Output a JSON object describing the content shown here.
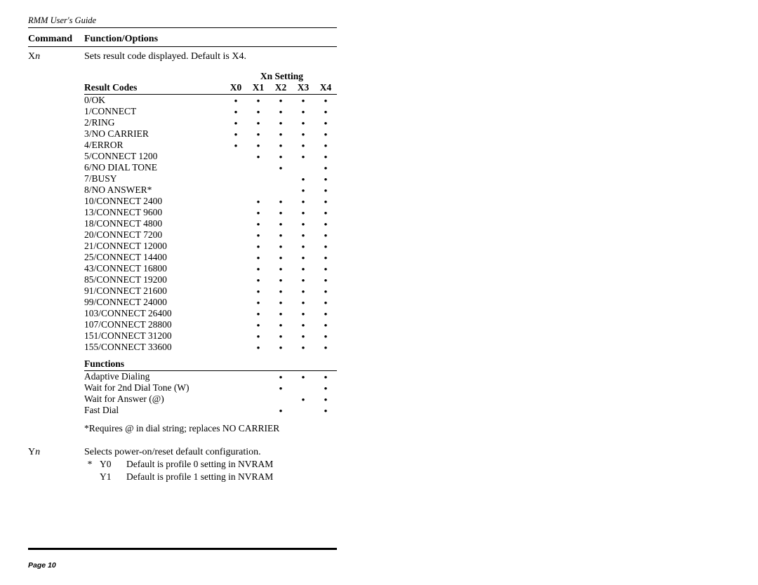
{
  "running_head": "RMM User's Guide",
  "page_label": "Page 10",
  "columns": {
    "command": "Command",
    "function": "Function/Options"
  },
  "xn": {
    "cmd_letter": "X",
    "cmd_var": "n",
    "desc": "Sets result code displayed.  Default is X4.",
    "setting_head": "Xn Setting",
    "setting_cols": [
      "X0",
      "X1",
      "X2",
      "X3",
      "X4"
    ],
    "result_codes_head": "Result Codes",
    "result_codes": [
      {
        "label": "0/OK",
        "dots": [
          1,
          1,
          1,
          1,
          1
        ]
      },
      {
        "label": "1/CONNECT",
        "dots": [
          1,
          1,
          1,
          1,
          1
        ]
      },
      {
        "label": "2/RING",
        "dots": [
          1,
          1,
          1,
          1,
          1
        ]
      },
      {
        "label": "3/NO CARRIER",
        "dots": [
          1,
          1,
          1,
          1,
          1
        ]
      },
      {
        "label": "4/ERROR",
        "dots": [
          1,
          1,
          1,
          1,
          1
        ]
      },
      {
        "label": "5/CONNECT 1200",
        "dots": [
          0,
          1,
          1,
          1,
          1
        ]
      },
      {
        "label": "6/NO DIAL TONE",
        "dots": [
          0,
          0,
          1,
          0,
          1
        ]
      },
      {
        "label": "7/BUSY",
        "dots": [
          0,
          0,
          0,
          1,
          1
        ]
      },
      {
        "label": "8/NO ANSWER*",
        "dots": [
          0,
          0,
          0,
          1,
          1
        ]
      },
      {
        "label": "10/CONNECT 2400",
        "dots": [
          0,
          1,
          1,
          1,
          1
        ]
      },
      {
        "label": "13/CONNECT 9600",
        "dots": [
          0,
          1,
          1,
          1,
          1
        ]
      },
      {
        "label": "18/CONNECT 4800",
        "dots": [
          0,
          1,
          1,
          1,
          1
        ]
      },
      {
        "label": "20/CONNECT 7200",
        "dots": [
          0,
          1,
          1,
          1,
          1
        ]
      },
      {
        "label": "21/CONNECT 12000",
        "dots": [
          0,
          1,
          1,
          1,
          1
        ]
      },
      {
        "label": "25/CONNECT 14400",
        "dots": [
          0,
          1,
          1,
          1,
          1
        ]
      },
      {
        "label": "43/CONNECT 16800",
        "dots": [
          0,
          1,
          1,
          1,
          1
        ]
      },
      {
        "label": "85/CONNECT 19200",
        "dots": [
          0,
          1,
          1,
          1,
          1
        ]
      },
      {
        "label": "91/CONNECT 21600",
        "dots": [
          0,
          1,
          1,
          1,
          1
        ]
      },
      {
        "label": "99/CONNECT 24000",
        "dots": [
          0,
          1,
          1,
          1,
          1
        ]
      },
      {
        "label": "103/CONNECT 26400",
        "dots": [
          0,
          1,
          1,
          1,
          1
        ]
      },
      {
        "label": "107/CONNECT 28800",
        "dots": [
          0,
          1,
          1,
          1,
          1
        ]
      },
      {
        "label": "151/CONNECT 31200",
        "dots": [
          0,
          1,
          1,
          1,
          1
        ]
      },
      {
        "label": "155/CONNECT 33600",
        "dots": [
          0,
          1,
          1,
          1,
          1
        ]
      }
    ],
    "functions_head": "Functions",
    "functions": [
      {
        "label": "Adaptive Dialing",
        "dots": [
          0,
          0,
          1,
          1,
          1
        ]
      },
      {
        "label": "Wait for 2nd Dial Tone (W)",
        "dots": [
          0,
          0,
          1,
          0,
          1
        ]
      },
      {
        "label": "Wait for Answer (@)",
        "dots": [
          0,
          0,
          0,
          1,
          1
        ]
      },
      {
        "label": "Fast Dial",
        "dots": [
          0,
          0,
          1,
          0,
          1
        ]
      }
    ],
    "footnote": "*Requires @ in dial string; replaces NO CARRIER"
  },
  "yn": {
    "cmd_letter": "Y",
    "cmd_var": "n",
    "desc": "Selects power-on/reset default configuration.",
    "options": [
      {
        "star": "*",
        "code": "Y0",
        "text": "Default is profile 0 setting in NVRAM"
      },
      {
        "star": "",
        "code": "Y1",
        "text": "Default is profile 1 setting in NVRAM"
      }
    ]
  },
  "style": {
    "dot_char": "•",
    "text_color": "#000000",
    "bg_color": "#ffffff"
  }
}
